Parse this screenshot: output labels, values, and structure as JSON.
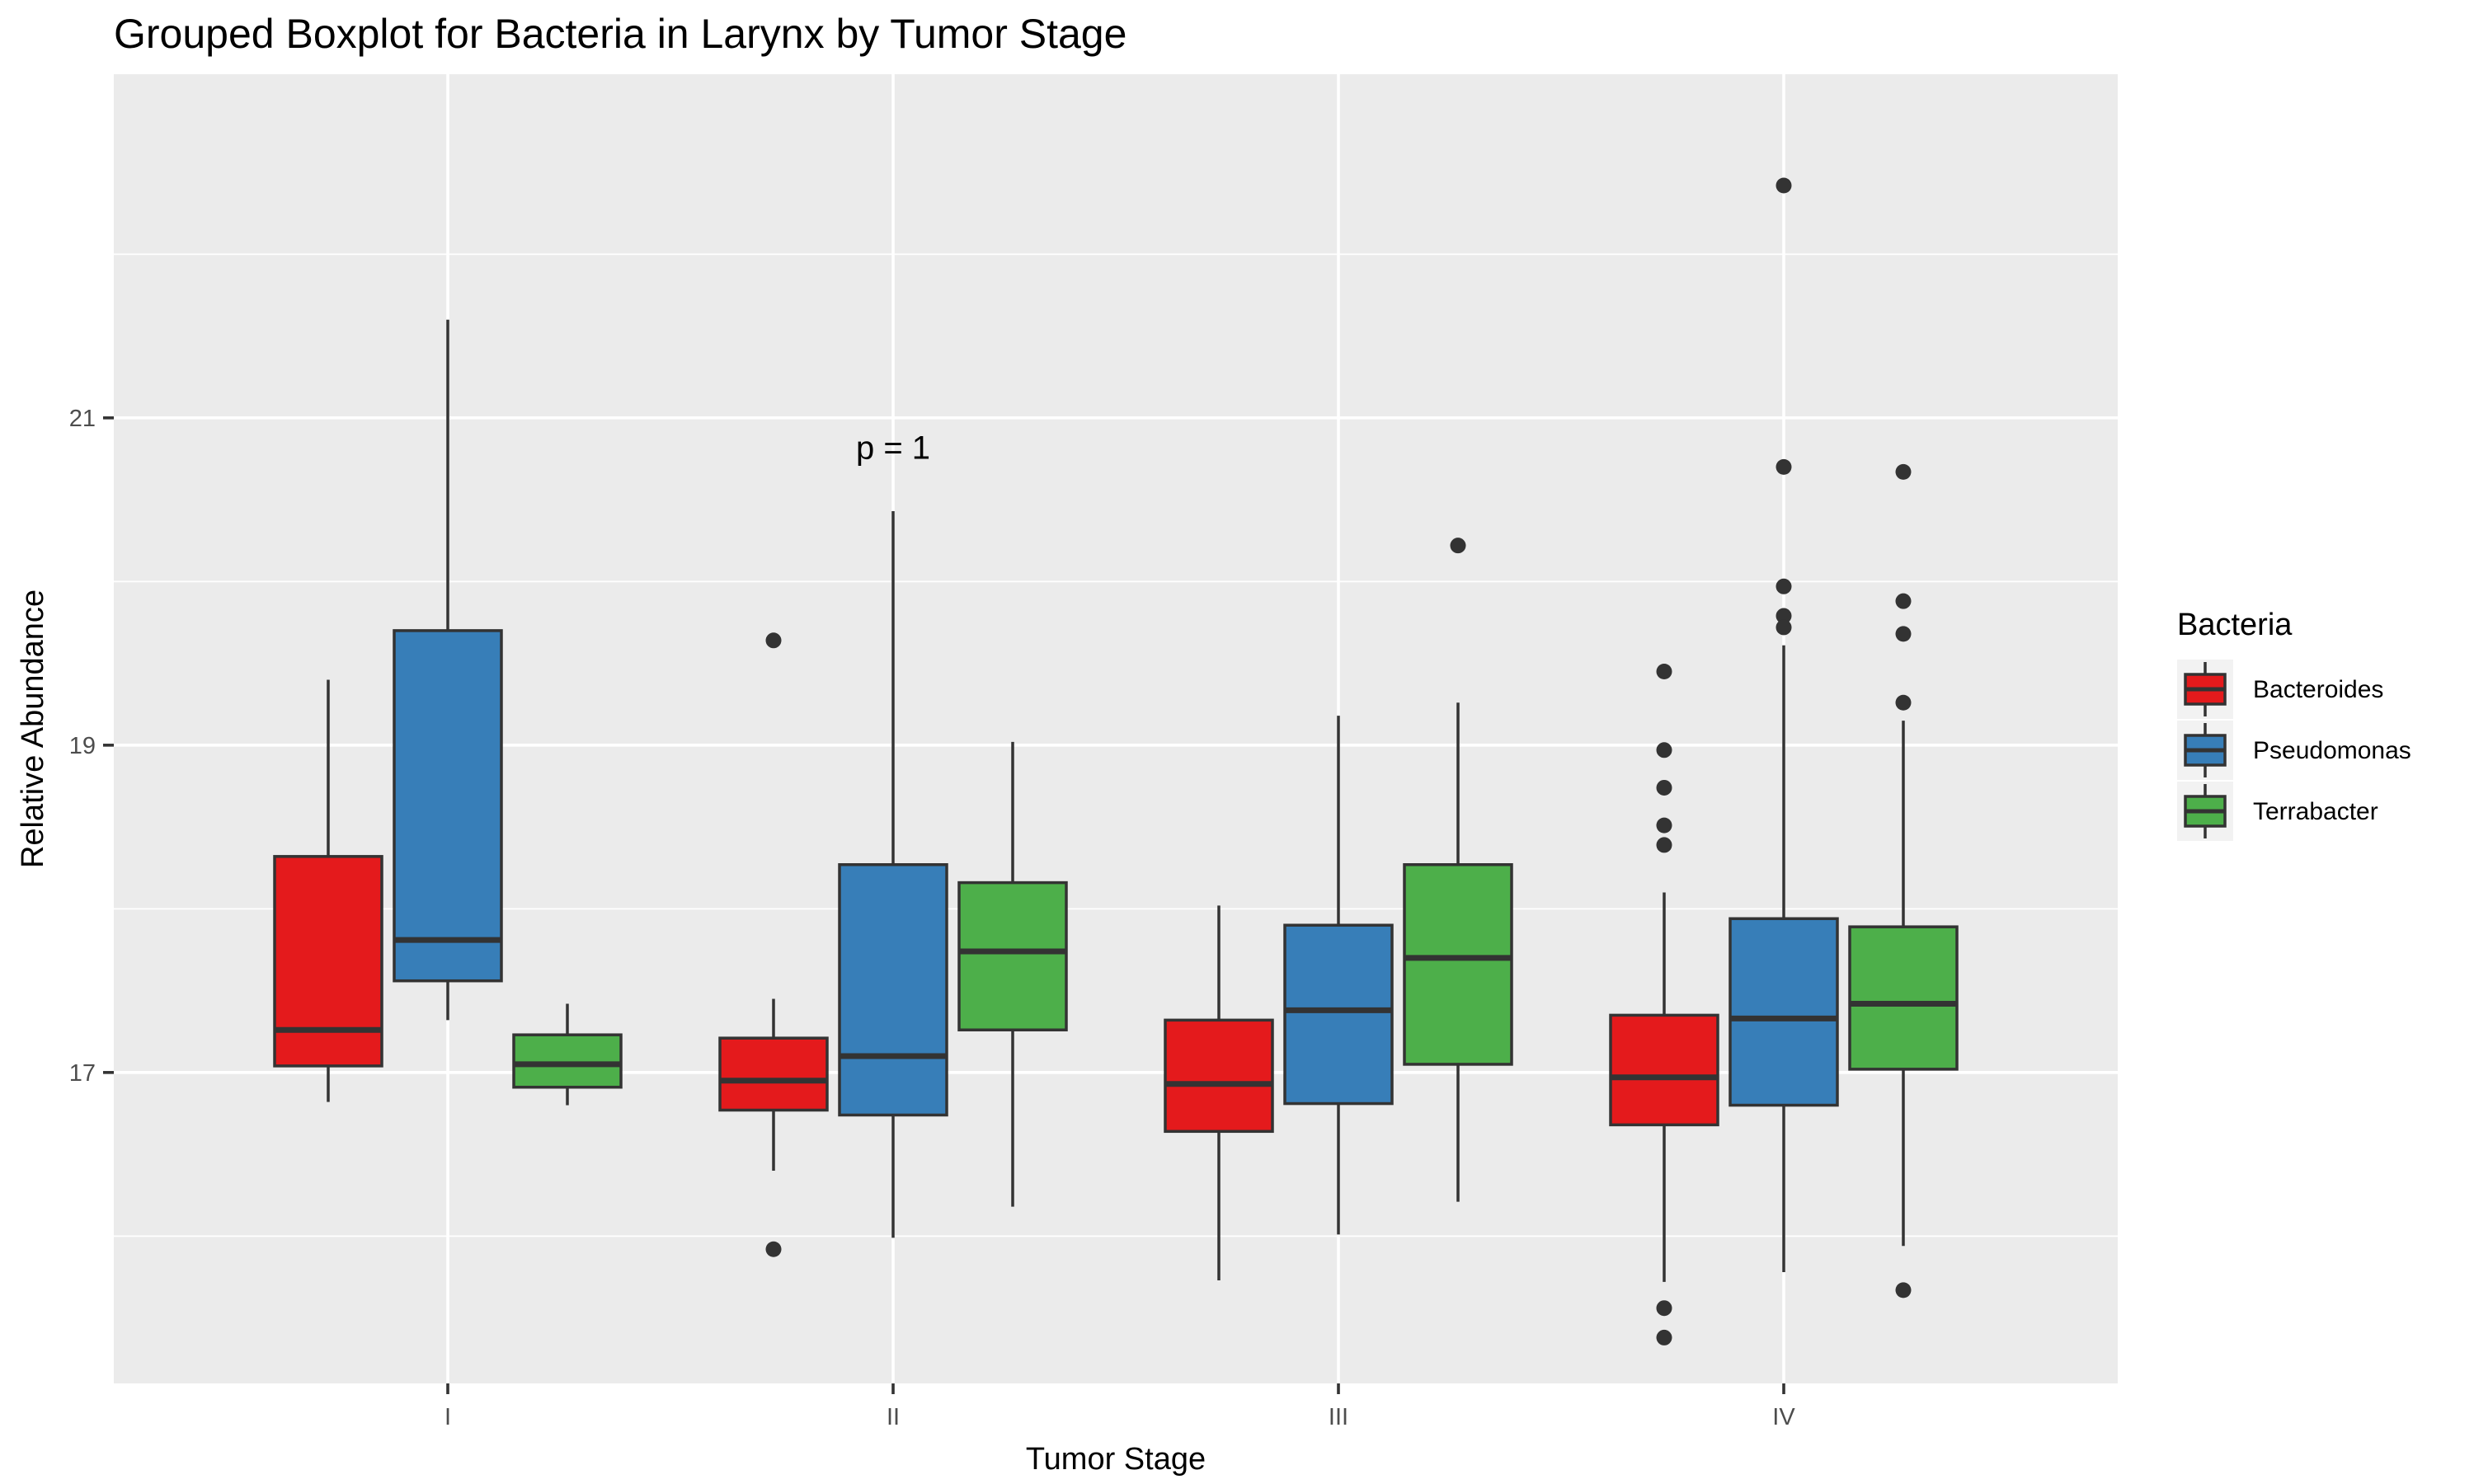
{
  "chart_data": {
    "type": "boxplot",
    "title": "Grouped Boxplot for Bacteria in Larynx by Tumor Stage",
    "xlabel": "Tumor Stage",
    "ylabel": "Relative Abundance",
    "categories": [
      "I",
      "II",
      "III",
      "IV"
    ],
    "ylim": [
      15.1,
      23.1
    ],
    "y_ticks": [
      17,
      19,
      21
    ],
    "grid": true,
    "legend": {
      "title": "Bacteria",
      "position": "right"
    },
    "annotation": {
      "text": "p = 1",
      "category": "II",
      "y": 20.75
    },
    "series": [
      {
        "name": "Bacteroides",
        "color": "#E41A1C",
        "boxes": [
          {
            "category": "I",
            "whisker_low": 16.82,
            "q1": 17.04,
            "median": 17.26,
            "q3": 18.32,
            "whisker_high": 19.4,
            "outliers": []
          },
          {
            "category": "II",
            "whisker_low": 16.4,
            "q1": 16.77,
            "median": 16.95,
            "q3": 17.21,
            "whisker_high": 17.45,
            "outliers": [
              19.64,
              15.92
            ]
          },
          {
            "category": "III",
            "whisker_low": 15.73,
            "q1": 16.64,
            "median": 16.93,
            "q3": 17.32,
            "whisker_high": 18.02,
            "outliers": []
          },
          {
            "category": "IV",
            "whisker_low": 15.72,
            "q1": 16.68,
            "median": 16.97,
            "q3": 17.35,
            "whisker_high": 18.1,
            "outliers": [
              19.45,
              18.97,
              18.74,
              18.51,
              18.39,
              15.56,
              15.38
            ]
          }
        ]
      },
      {
        "name": "Pseudomonas",
        "color": "#377EB8",
        "boxes": [
          {
            "category": "I",
            "whisker_low": 17.32,
            "q1": 17.56,
            "median": 17.81,
            "q3": 19.7,
            "whisker_high": 21.6,
            "outliers": []
          },
          {
            "category": "II",
            "whisker_low": 15.99,
            "q1": 16.74,
            "median": 17.1,
            "q3": 18.27,
            "whisker_high": 20.43,
            "outliers": []
          },
          {
            "category": "III",
            "whisker_low": 16.01,
            "q1": 16.81,
            "median": 17.38,
            "q3": 17.9,
            "whisker_high": 19.18,
            "outliers": []
          },
          {
            "category": "IV",
            "whisker_low": 15.78,
            "q1": 16.8,
            "median": 17.33,
            "q3": 17.94,
            "whisker_high": 19.61,
            "outliers": [
              22.42,
              20.7,
              19.97,
              19.79,
              19.72
            ]
          }
        ]
      },
      {
        "name": "Terrabacter",
        "color": "#4DAF4A",
        "boxes": [
          {
            "category": "I",
            "whisker_low": 16.8,
            "q1": 16.91,
            "median": 17.05,
            "q3": 17.23,
            "whisker_high": 17.42,
            "outliers": []
          },
          {
            "category": "II",
            "whisker_low": 16.18,
            "q1": 17.26,
            "median": 17.74,
            "q3": 18.16,
            "whisker_high": 19.02,
            "outliers": []
          },
          {
            "category": "III",
            "whisker_low": 16.21,
            "q1": 17.05,
            "median": 17.7,
            "q3": 18.27,
            "whisker_high": 19.26,
            "outliers": [
              20.22
            ]
          },
          {
            "category": "IV",
            "whisker_low": 15.94,
            "q1": 17.02,
            "median": 17.42,
            "q3": 17.89,
            "whisker_high": 19.15,
            "outliers": [
              20.67,
              19.88,
              19.68,
              19.26,
              15.67
            ]
          }
        ]
      }
    ]
  }
}
